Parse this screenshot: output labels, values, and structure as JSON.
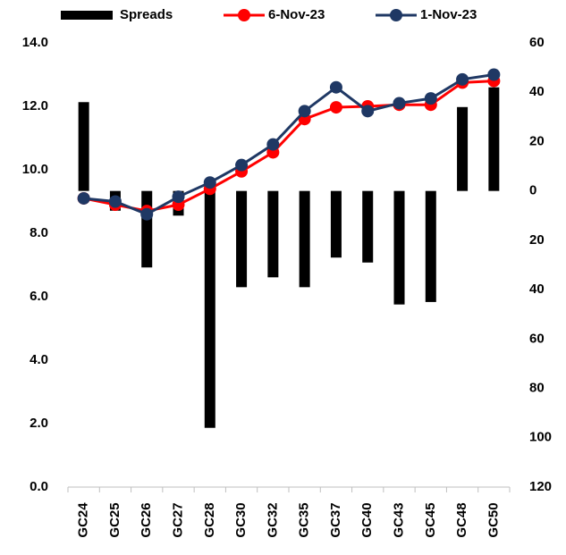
{
  "chart_data": {
    "type": "bar-line",
    "categories": [
      "GC24",
      "GC25",
      "GC26",
      "GC27",
      "GC28",
      "GC30",
      "GC32",
      "GC35",
      "GC37",
      "GC40",
      "GC43",
      "GC45",
      "GC48",
      "GC50"
    ],
    "series": [
      {
        "name": "Spreads",
        "type": "bar",
        "axis": "y2",
        "color": "#000000",
        "values": [
          36,
          -8,
          -31,
          -10,
          -96,
          -39,
          -35,
          -39,
          -27,
          -29,
          -46,
          -45,
          34,
          42
        ]
      },
      {
        "name": "6-Nov-23",
        "type": "line",
        "color": "#ff0000",
        "values": [
          9.1,
          8.9,
          8.7,
          8.9,
          9.4,
          9.95,
          10.55,
          11.6,
          11.97,
          12.0,
          12.05,
          12.05,
          12.75,
          12.8
        ]
      },
      {
        "name": "1-Nov-23",
        "type": "line",
        "color": "#1f3864",
        "values": [
          9.1,
          9.0,
          8.6,
          9.15,
          9.6,
          10.15,
          10.8,
          11.85,
          12.6,
          11.85,
          12.1,
          12.25,
          12.85,
          13.0
        ]
      }
    ],
    "ylim": [
      0,
      14
    ],
    "yticks": [
      {
        "value": 0,
        "label": "0.0"
      },
      {
        "value": 2,
        "label": "2.0"
      },
      {
        "value": 4,
        "label": "4.0"
      },
      {
        "value": 6,
        "label": "6.0"
      },
      {
        "value": 8,
        "label": "8.0"
      },
      {
        "value": 10,
        "label": "10.0"
      },
      {
        "value": 12,
        "label": "12.0"
      },
      {
        "value": 14,
        "label": "14.0"
      }
    ],
    "y2lim": [
      -120,
      60
    ],
    "y2ticks": [
      60,
      40,
      20,
      0,
      {
        "value": -20,
        "label": "20",
        "color": "#ff0000"
      },
      {
        "value": -40,
        "label": "40",
        "color": "#ff0000"
      },
      {
        "value": -60,
        "label": "60",
        "color": "#ff0000"
      },
      {
        "value": -80,
        "label": "80",
        "color": "#ff0000"
      },
      {
        "value": -100,
        "label": "100",
        "color": "#ff0000"
      },
      {
        "value": -120,
        "label": "120",
        "color": "#ff0000"
      }
    ],
    "legend": "top"
  }
}
